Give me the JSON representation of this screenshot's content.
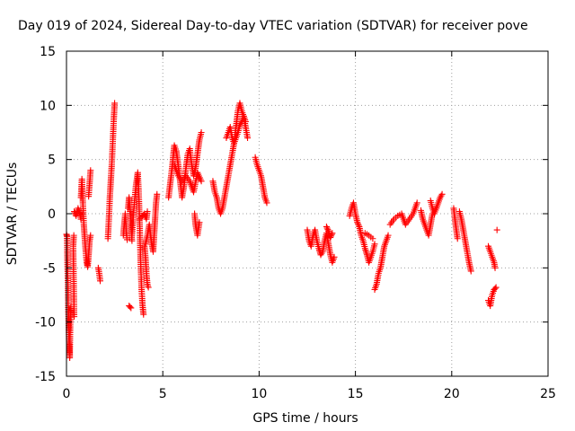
{
  "chart_data": {
    "type": "scatter",
    "title": "Day 019 of 2024, Sidereal Day-to-day VTEC variation (SDTVAR) for receiver pove",
    "xlabel": "GPS time / hours",
    "ylabel": "SDTVAR / TECUs",
    "xlim": [
      0,
      25
    ],
    "ylim": [
      -15,
      15
    ],
    "x_ticks": [
      0,
      5,
      10,
      15,
      20,
      25
    ],
    "x_tick_labels": [
      "0",
      "5",
      "10",
      "15",
      "20",
      "25"
    ],
    "y_ticks": [
      -15,
      -10,
      -5,
      0,
      5,
      10,
      15
    ],
    "y_tick_labels": [
      "-15",
      "-10",
      "-5",
      "0",
      "5",
      "10",
      "15"
    ],
    "grid": true,
    "marker": "plus",
    "color": "#ff0000",
    "series": [
      {
        "name": "SDTVAR",
        "segments": [
          [
            [
              0.0,
              -1.9
            ],
            [
              0.03,
              -2.1
            ],
            [
              0.05,
              -4.5
            ],
            [
              0.07,
              -6.0
            ],
            [
              0.09,
              -8.5
            ],
            [
              0.11,
              -10.0
            ],
            [
              0.13,
              -11.5
            ],
            [
              0.15,
              -12.5
            ],
            [
              0.17,
              -13.3
            ],
            [
              0.19,
              -10.8
            ],
            [
              0.21,
              -9.2
            ],
            [
              0.23,
              -8.6
            ]
          ],
          [
            [
              0.4,
              -9.5
            ],
            [
              0.35,
              -3.0
            ],
            [
              0.38,
              -2.0
            ]
          ],
          [
            [
              0.4,
              0.2
            ],
            [
              0.5,
              -0.2
            ],
            [
              0.6,
              0.5
            ],
            [
              0.7,
              0.0
            ],
            [
              0.75,
              -0.5
            ]
          ],
          [
            [
              0.75,
              1.5
            ],
            [
              0.8,
              3.2
            ],
            [
              0.85,
              1.0
            ],
            [
              0.9,
              -1.0
            ],
            [
              0.95,
              -2.3
            ],
            [
              1.0,
              -3.5
            ],
            [
              1.05,
              -4.5
            ],
            [
              1.1,
              -4.9
            ],
            [
              1.15,
              -3.8
            ],
            [
              1.2,
              -2.5
            ],
            [
              1.25,
              -2.0
            ]
          ],
          [
            [
              1.15,
              1.6
            ],
            [
              1.2,
              2.8
            ],
            [
              1.25,
              4.0
            ]
          ],
          [
            [
              1.65,
              -5.0
            ],
            [
              1.7,
              -5.5
            ],
            [
              1.75,
              -6.2
            ]
          ],
          [
            [
              2.15,
              -2.3
            ],
            [
              2.2,
              -0.5
            ],
            [
              2.25,
              1.5
            ],
            [
              2.3,
              3.0
            ],
            [
              2.35,
              4.5
            ],
            [
              2.4,
              6.5
            ],
            [
              2.45,
              8.5
            ],
            [
              2.5,
              10.2
            ]
          ],
          [
            [
              2.95,
              -2.0
            ],
            [
              3.0,
              -1.0
            ],
            [
              3.05,
              0.0
            ],
            [
              3.1,
              -1.5
            ],
            [
              3.15,
              -2.4
            ]
          ],
          [
            [
              3.25,
              -8.5
            ],
            [
              3.35,
              -8.7
            ]
          ],
          [
            [
              3.2,
              0.5
            ],
            [
              3.25,
              1.5
            ],
            [
              3.3,
              0.2
            ],
            [
              3.35,
              -1.0
            ],
            [
              3.4,
              -2.5
            ]
          ],
          [
            [
              3.4,
              -2.0
            ],
            [
              3.5,
              0.5
            ],
            [
              3.6,
              2.5
            ],
            [
              3.7,
              3.8
            ],
            [
              3.75,
              2.0
            ],
            [
              3.8,
              -1.0
            ],
            [
              3.85,
              -4.5
            ],
            [
              3.9,
              -7.0
            ],
            [
              3.95,
              -8.5
            ],
            [
              4.0,
              -9.3
            ]
          ],
          [
            [
              3.8,
              -0.5
            ],
            [
              3.95,
              -0.2
            ],
            [
              4.05,
              0.0
            ],
            [
              4.15,
              -0.5
            ],
            [
              4.2,
              0.2
            ]
          ],
          [
            [
              4.05,
              -3.0
            ],
            [
              4.1,
              -4.0
            ],
            [
              4.15,
              -5.5
            ],
            [
              4.2,
              -6.5
            ],
            [
              4.25,
              -6.8
            ]
          ],
          [
            [
              4.1,
              -2.8
            ],
            [
              4.2,
              -2.0
            ],
            [
              4.3,
              -1.0
            ],
            [
              4.4,
              -2.5
            ],
            [
              4.5,
              -3.5
            ],
            [
              4.55,
              -2.0
            ],
            [
              4.6,
              -0.5
            ],
            [
              4.65,
              1.0
            ],
            [
              4.7,
              1.8
            ]
          ],
          [
            [
              5.3,
              1.5
            ],
            [
              5.4,
              3.0
            ],
            [
              5.5,
              4.5
            ],
            [
              5.55,
              5.5
            ],
            [
              5.6,
              6.3
            ],
            [
              5.7,
              5.8
            ],
            [
              5.8,
              4.5
            ],
            [
              5.9,
              3.0
            ],
            [
              6.0,
              1.5
            ],
            [
              6.1,
              2.5
            ],
            [
              6.2,
              4.2
            ],
            [
              6.3,
              5.5
            ],
            [
              6.4,
              6.0
            ],
            [
              6.5,
              4.5
            ],
            [
              6.6,
              3.5
            ],
            [
              6.7,
              4.2
            ],
            [
              6.8,
              5.5
            ],
            [
              6.9,
              6.8
            ],
            [
              7.0,
              7.5
            ]
          ],
          [
            [
              5.6,
              4.5
            ],
            [
              5.8,
              3.5
            ],
            [
              6.0,
              3.0
            ],
            [
              6.2,
              3.5
            ],
            [
              6.4,
              3.0
            ],
            [
              6.6,
              2.0
            ],
            [
              6.8,
              3.8
            ],
            [
              7.0,
              3.0
            ]
          ],
          [
            [
              6.65,
              0.0
            ],
            [
              6.7,
              -1.0
            ],
            [
              6.8,
              -2.0
            ],
            [
              6.9,
              -0.8
            ]
          ],
          [
            [
              7.6,
              3.0
            ],
            [
              7.7,
              2.0
            ],
            [
              7.8,
              1.5
            ],
            [
              7.9,
              0.5
            ],
            [
              8.0,
              0.0
            ],
            [
              8.1,
              0.5
            ],
            [
              8.2,
              1.5
            ],
            [
              8.3,
              2.5
            ],
            [
              8.4,
              3.5
            ],
            [
              8.5,
              4.5
            ],
            [
              8.6,
              5.5
            ],
            [
              8.7,
              6.5
            ],
            [
              8.8,
              8.0
            ],
            [
              8.9,
              9.5
            ],
            [
              9.0,
              10.2
            ],
            [
              9.1,
              9.5
            ],
            [
              9.2,
              9.0
            ],
            [
              9.3,
              8.0
            ],
            [
              9.4,
              7.0
            ]
          ],
          [
            [
              8.3,
              7.0
            ],
            [
              8.4,
              7.5
            ],
            [
              8.5,
              8.0
            ],
            [
              8.6,
              7.0
            ],
            [
              8.7,
              6.5
            ],
            [
              8.8,
              7.0
            ],
            [
              8.9,
              7.5
            ],
            [
              9.0,
              8.2
            ],
            [
              9.1,
              8.5
            ],
            [
              9.2,
              9.0
            ],
            [
              9.3,
              8.5
            ]
          ],
          [
            [
              9.8,
              5.2
            ],
            [
              9.9,
              4.5
            ],
            [
              10.0,
              4.0
            ],
            [
              10.1,
              3.5
            ],
            [
              10.2,
              2.5
            ],
            [
              10.3,
              1.5
            ],
            [
              10.4,
              1.0
            ]
          ],
          [
            [
              12.5,
              -1.5
            ],
            [
              12.6,
              -2.5
            ],
            [
              12.7,
              -3.0
            ],
            [
              12.8,
              -2.0
            ],
            [
              12.9,
              -1.5
            ],
            [
              13.0,
              -2.5
            ],
            [
              13.1,
              -3.2
            ],
            [
              13.2,
              -3.8
            ],
            [
              13.3,
              -3.5
            ],
            [
              13.4,
              -2.5
            ],
            [
              13.5,
              -1.8
            ],
            [
              13.6,
              -2.8
            ],
            [
              13.7,
              -3.8
            ],
            [
              13.8,
              -4.5
            ],
            [
              13.9,
              -4.0
            ]
          ],
          [
            [
              13.5,
              -1.2
            ],
            [
              13.6,
              -1.6
            ],
            [
              13.7,
              -2.2
            ],
            [
              13.8,
              -1.8
            ]
          ],
          [
            [
              14.7,
              -0.2
            ],
            [
              14.8,
              0.5
            ],
            [
              14.9,
              1.0
            ],
            [
              15.0,
              0.0
            ],
            [
              15.1,
              -0.8
            ],
            [
              15.2,
              -1.2
            ],
            [
              15.3,
              -2.0
            ],
            [
              15.4,
              -2.5
            ],
            [
              15.5,
              -3.2
            ],
            [
              15.6,
              -3.8
            ],
            [
              15.7,
              -4.5
            ],
            [
              15.8,
              -4.0
            ],
            [
              15.9,
              -3.5
            ],
            [
              16.0,
              -2.8
            ]
          ],
          [
            [
              15.5,
              -1.8
            ],
            [
              15.7,
              -2.0
            ],
            [
              15.9,
              -2.3
            ]
          ],
          [
            [
              16.0,
              -7.0
            ],
            [
              16.1,
              -6.5
            ],
            [
              16.2,
              -5.5
            ],
            [
              16.3,
              -5.0
            ],
            [
              16.4,
              -4.0
            ],
            [
              16.5,
              -3.0
            ],
            [
              16.6,
              -2.5
            ],
            [
              16.7,
              -2.0
            ]
          ],
          [
            [
              16.8,
              -1.0
            ],
            [
              17.0,
              -0.5
            ],
            [
              17.2,
              -0.2
            ],
            [
              17.4,
              0.0
            ],
            [
              17.6,
              -1.0
            ],
            [
              17.8,
              -0.5
            ],
            [
              18.0,
              0.0
            ],
            [
              18.2,
              1.0
            ]
          ],
          [
            [
              18.4,
              0.3
            ],
            [
              18.5,
              -0.5
            ],
            [
              18.6,
              -1.0
            ],
            [
              18.7,
              -1.5
            ],
            [
              18.8,
              -2.0
            ],
            [
              18.9,
              -1.0
            ],
            [
              19.0,
              0.0
            ],
            [
              19.2,
              0.5
            ]
          ],
          [
            [
              18.9,
              1.2
            ],
            [
              19.0,
              0.5
            ],
            [
              19.1,
              0.0
            ],
            [
              19.2,
              0.5
            ],
            [
              19.3,
              1.0
            ],
            [
              19.4,
              1.5
            ],
            [
              19.5,
              1.8
            ]
          ],
          [
            [
              20.1,
              0.5
            ],
            [
              20.2,
              -1.0
            ],
            [
              20.3,
              -2.3
            ]
          ],
          [
            [
              20.4,
              0.2
            ],
            [
              20.5,
              -0.5
            ],
            [
              20.6,
              -1.5
            ],
            [
              20.7,
              -2.5
            ],
            [
              20.8,
              -3.5
            ],
            [
              20.9,
              -4.5
            ],
            [
              21.0,
              -5.3
            ]
          ],
          [
            [
              21.9,
              -3.0
            ],
            [
              22.0,
              -3.5
            ],
            [
              22.1,
              -4.0
            ],
            [
              22.2,
              -4.5
            ],
            [
              22.25,
              -5.0
            ]
          ],
          [
            [
              21.9,
              -8.0
            ],
            [
              22.0,
              -8.5
            ],
            [
              22.1,
              -7.5
            ],
            [
              22.2,
              -7.0
            ],
            [
              22.3,
              -6.8
            ]
          ],
          [
            [
              22.35,
              -1.5
            ]
          ]
        ]
      }
    ]
  }
}
